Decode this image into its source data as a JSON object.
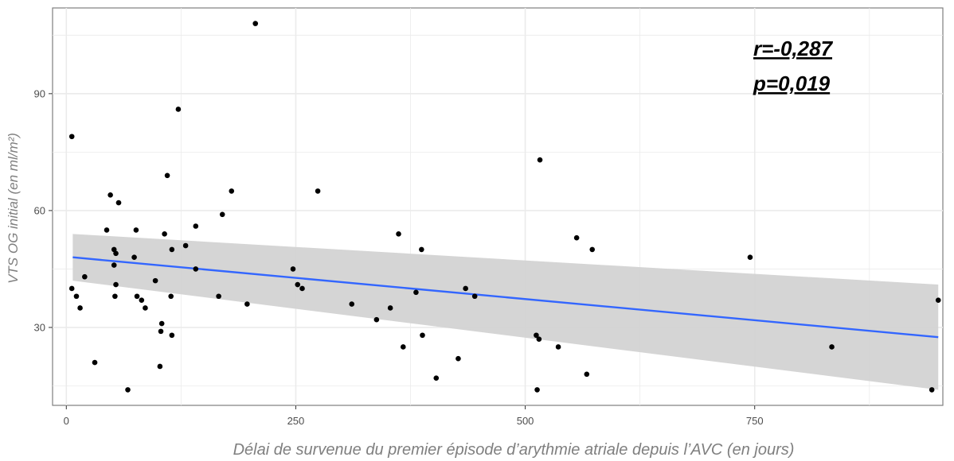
{
  "chart_data": {
    "type": "scatter",
    "xlabel": "Délai de survenue du premier épisode d’arythmie atriale depuis l’AVC (en jours)",
    "ylabel": "VTS OG initial  (en ml/m²)",
    "xlim": [
      -15,
      955
    ],
    "ylim": [
      10,
      112
    ],
    "x_ticks": [
      0,
      250,
      500,
      750
    ],
    "x_tick_labels": [
      "0",
      "250",
      "500",
      "750"
    ],
    "y_ticks": [
      30,
      60,
      90
    ],
    "y_tick_labels": [
      "30",
      "60",
      "90"
    ],
    "grid": true,
    "annotations": [
      "r=-0,287",
      "p=0,019"
    ],
    "colors": {
      "points": "#000000",
      "regression_line": "#3366ff",
      "confidence_band": "#d3d3d3",
      "panel_border": "#7f7f7f",
      "grid": "#ebebeb"
    },
    "points": [
      {
        "x": 6,
        "y": 79
      },
      {
        "x": 6,
        "y": 40
      },
      {
        "x": 11,
        "y": 38
      },
      {
        "x": 15,
        "y": 35
      },
      {
        "x": 20,
        "y": 43
      },
      {
        "x": 31,
        "y": 21
      },
      {
        "x": 44,
        "y": 55
      },
      {
        "x": 48,
        "y": 64
      },
      {
        "x": 52,
        "y": 50
      },
      {
        "x": 52,
        "y": 46
      },
      {
        "x": 53,
        "y": 38
      },
      {
        "x": 54,
        "y": 41
      },
      {
        "x": 54,
        "y": 49
      },
      {
        "x": 57,
        "y": 62
      },
      {
        "x": 67,
        "y": 14
      },
      {
        "x": 74,
        "y": 48
      },
      {
        "x": 76,
        "y": 55
      },
      {
        "x": 77,
        "y": 38
      },
      {
        "x": 82,
        "y": 37
      },
      {
        "x": 86,
        "y": 35
      },
      {
        "x": 97,
        "y": 42
      },
      {
        "x": 102,
        "y": 20
      },
      {
        "x": 103,
        "y": 29
      },
      {
        "x": 104,
        "y": 31
      },
      {
        "x": 107,
        "y": 54
      },
      {
        "x": 110,
        "y": 69
      },
      {
        "x": 114,
        "y": 38
      },
      {
        "x": 115,
        "y": 50
      },
      {
        "x": 115,
        "y": 28
      },
      {
        "x": 122,
        "y": 86
      },
      {
        "x": 130,
        "y": 51
      },
      {
        "x": 141,
        "y": 56
      },
      {
        "x": 141,
        "y": 45
      },
      {
        "x": 166,
        "y": 38
      },
      {
        "x": 170,
        "y": 59
      },
      {
        "x": 180,
        "y": 65
      },
      {
        "x": 197,
        "y": 36
      },
      {
        "x": 206,
        "y": 108
      },
      {
        "x": 247,
        "y": 45
      },
      {
        "x": 252,
        "y": 41
      },
      {
        "x": 257,
        "y": 40
      },
      {
        "x": 274,
        "y": 65
      },
      {
        "x": 311,
        "y": 36
      },
      {
        "x": 338,
        "y": 32
      },
      {
        "x": 353,
        "y": 35
      },
      {
        "x": 362,
        "y": 54
      },
      {
        "x": 367,
        "y": 25
      },
      {
        "x": 381,
        "y": 39
      },
      {
        "x": 387,
        "y": 50
      },
      {
        "x": 388,
        "y": 28
      },
      {
        "x": 403,
        "y": 17
      },
      {
        "x": 427,
        "y": 22
      },
      {
        "x": 435,
        "y": 40
      },
      {
        "x": 445,
        "y": 38
      },
      {
        "x": 512,
        "y": 28
      },
      {
        "x": 513,
        "y": 14
      },
      {
        "x": 515,
        "y": 27
      },
      {
        "x": 516,
        "y": 73
      },
      {
        "x": 536,
        "y": 25
      },
      {
        "x": 556,
        "y": 53
      },
      {
        "x": 567,
        "y": 18
      },
      {
        "x": 573,
        "y": 50
      },
      {
        "x": 745,
        "y": 48
      },
      {
        "x": 834,
        "y": 25
      },
      {
        "x": 943,
        "y": 14
      },
      {
        "x": 950,
        "y": 37
      }
    ],
    "regression": {
      "x": [
        7,
        950
      ],
      "y": [
        48,
        27.5
      ],
      "ci_lower": [
        42,
        14
      ],
      "ci_upper": [
        54,
        41
      ]
    }
  }
}
